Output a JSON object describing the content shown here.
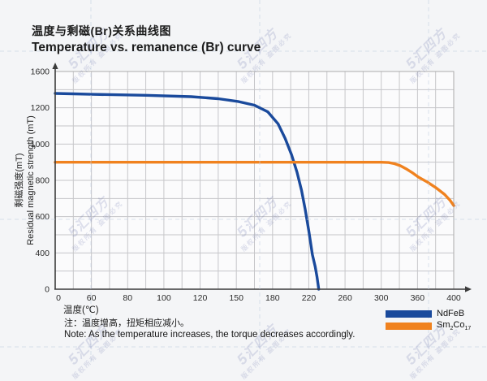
{
  "header": {
    "title_zh": "温度与剩磁(Br)关系曲线图",
    "title_en": "Temperature vs. remanence (Br) curve"
  },
  "chart_data": {
    "type": "line",
    "title": "Temperature vs. remanence (Br) curve",
    "x_axis": {
      "label": "温度(℃)",
      "tick_values": [
        0,
        60,
        80,
        100,
        120,
        150,
        180,
        220,
        260,
        300,
        360,
        400
      ],
      "note": "stylized axis - tick labels evenly spaced"
    },
    "y_axis": {
      "label_zh": "剩磁强度(mT)",
      "label_en": "Residual magnetic strength (mT)",
      "tick_values": [
        1600,
        1200,
        1000,
        800,
        600,
        400,
        0
      ],
      "ylim": [
        0,
        1600
      ]
    },
    "grid": "on",
    "legend_position": "bottom-right",
    "series": [
      {
        "name": "NdFeB",
        "color": "#1a4a9c",
        "points": [
          [
            0,
            1358
          ],
          [
            30,
            1354
          ],
          [
            60,
            1348
          ],
          [
            90,
            1338
          ],
          [
            115,
            1322
          ],
          [
            135,
            1300
          ],
          [
            152,
            1268
          ],
          [
            165,
            1228
          ],
          [
            176,
            1178
          ],
          [
            186,
            1112
          ],
          [
            194,
            1030
          ],
          [
            201,
            940
          ],
          [
            207,
            845
          ],
          [
            212,
            745
          ],
          [
            216,
            640
          ],
          [
            220,
            520
          ],
          [
            224,
            380
          ],
          [
            227,
            250
          ],
          [
            229,
            140
          ],
          [
            231,
            0
          ]
        ]
      },
      {
        "name": "Sm2Co17",
        "color": "#f0821f",
        "points": [
          [
            0,
            900
          ],
          [
            80,
            900
          ],
          [
            160,
            900
          ],
          [
            240,
            900
          ],
          [
            300,
            900
          ],
          [
            312,
            898
          ],
          [
            322,
            892
          ],
          [
            332,
            880
          ],
          [
            341,
            864
          ],
          [
            351,
            843
          ],
          [
            361,
            818
          ],
          [
            371,
            790
          ],
          [
            381,
            757
          ],
          [
            390,
            722
          ],
          [
            396,
            690
          ],
          [
            400,
            661
          ]
        ]
      }
    ],
    "note_zh": "注：温度增高，扭矩相应减小。",
    "note_en": "Note: As the temperature increases, the torque decreases accordingly."
  },
  "legend": {
    "items": [
      {
        "label": "NdFeB",
        "color": "#1a4a9c"
      },
      {
        "parts": {
          "b1": "Sm",
          "s1": "2",
          "b2": "Co",
          "s2": "17"
        },
        "color": "#f0821f"
      }
    ]
  },
  "watermark": {
    "logo_char": "5",
    "brand": "汇四方",
    "notice": "版权所有 盗图必究"
  },
  "colors": {
    "background": "#f4f5f7",
    "grid": "#c6c6c9",
    "plot_border": "#ababab",
    "axis": "#3b3b3b",
    "dashed_bg": "#c3cfe2"
  }
}
